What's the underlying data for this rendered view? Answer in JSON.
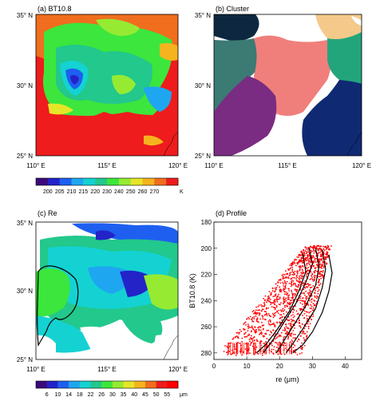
{
  "panels": {
    "a": {
      "title": "(a) BT10.8"
    },
    "b": {
      "title": "(b) Cluster"
    },
    "c": {
      "title": "(c) Re"
    },
    "d": {
      "title": "(d) Profile"
    }
  },
  "map_axes": {
    "lat_labels": [
      "35° N",
      "30° N",
      "25° N"
    ],
    "lon_labels": [
      "110° E",
      "115° E",
      "120° E"
    ]
  },
  "colorbar_bt": {
    "ticks": [
      "200",
      "205",
      "210",
      "215",
      "220",
      "230",
      "240",
      "250",
      "260",
      "270"
    ],
    "unit": "K",
    "colors": [
      "#3b0a7a",
      "#2323c8",
      "#1e5ff0",
      "#1ea6f0",
      "#14d2d2",
      "#22c88c",
      "#3ce63c",
      "#96eb32",
      "#e6e628",
      "#f5b41e",
      "#f06e1e",
      "#ee1c1c"
    ]
  },
  "colorbar_re": {
    "ticks": [
      "6",
      "10",
      "14",
      "18",
      "22",
      "26",
      "30",
      "35",
      "40",
      "45",
      "50",
      "55"
    ],
    "unit": "μm",
    "colors": [
      "#3b0a7a",
      "#2323c8",
      "#1e5ff0",
      "#1ea6f0",
      "#14d2d2",
      "#22c88c",
      "#3ce63c",
      "#96eb32",
      "#e6e628",
      "#f5b41e",
      "#f06e1e",
      "#ee1c1c",
      "#ff0000"
    ]
  },
  "chart_data": {
    "type": "scatter",
    "title": "(d) Profile",
    "xlabel": "re (μm)",
    "ylabel": "BT10.8 (K)",
    "xlim": [
      0,
      45
    ],
    "ylim": [
      180,
      285
    ],
    "y_inverted": true,
    "x_ticks": [
      0,
      10,
      20,
      30,
      40
    ],
    "y_ticks": [
      180,
      200,
      220,
      240,
      260,
      280
    ],
    "point_color": "#ff0000",
    "profile_color": "#000000",
    "profile_lines": [
      {
        "points": [
          [
            29,
            200
          ],
          [
            30,
            212
          ],
          [
            28,
            226
          ],
          [
            25,
            242
          ],
          [
            21,
            258
          ],
          [
            18,
            270
          ],
          [
            15,
            280
          ]
        ]
      },
      {
        "points": [
          [
            31,
            200
          ],
          [
            32,
            214
          ],
          [
            31,
            228
          ],
          [
            28,
            244
          ],
          [
            24,
            260
          ],
          [
            21,
            272
          ],
          [
            19,
            280
          ]
        ]
      },
      {
        "points": [
          [
            33,
            201
          ],
          [
            34,
            216
          ],
          [
            33,
            230
          ],
          [
            31,
            246
          ],
          [
            27,
            262
          ],
          [
            24,
            273
          ],
          [
            22,
            280
          ]
        ]
      },
      {
        "points": [
          [
            27,
            204
          ],
          [
            28,
            218
          ],
          [
            26,
            232
          ],
          [
            23,
            248
          ],
          [
            19,
            263
          ],
          [
            16,
            273
          ],
          [
            13,
            280
          ]
        ]
      },
      {
        "points": [
          [
            35,
            205
          ],
          [
            36,
            219
          ],
          [
            35,
            233
          ],
          [
            33,
            249
          ],
          [
            30,
            264
          ],
          [
            27,
            274
          ],
          [
            24,
            280
          ]
        ]
      }
    ]
  }
}
